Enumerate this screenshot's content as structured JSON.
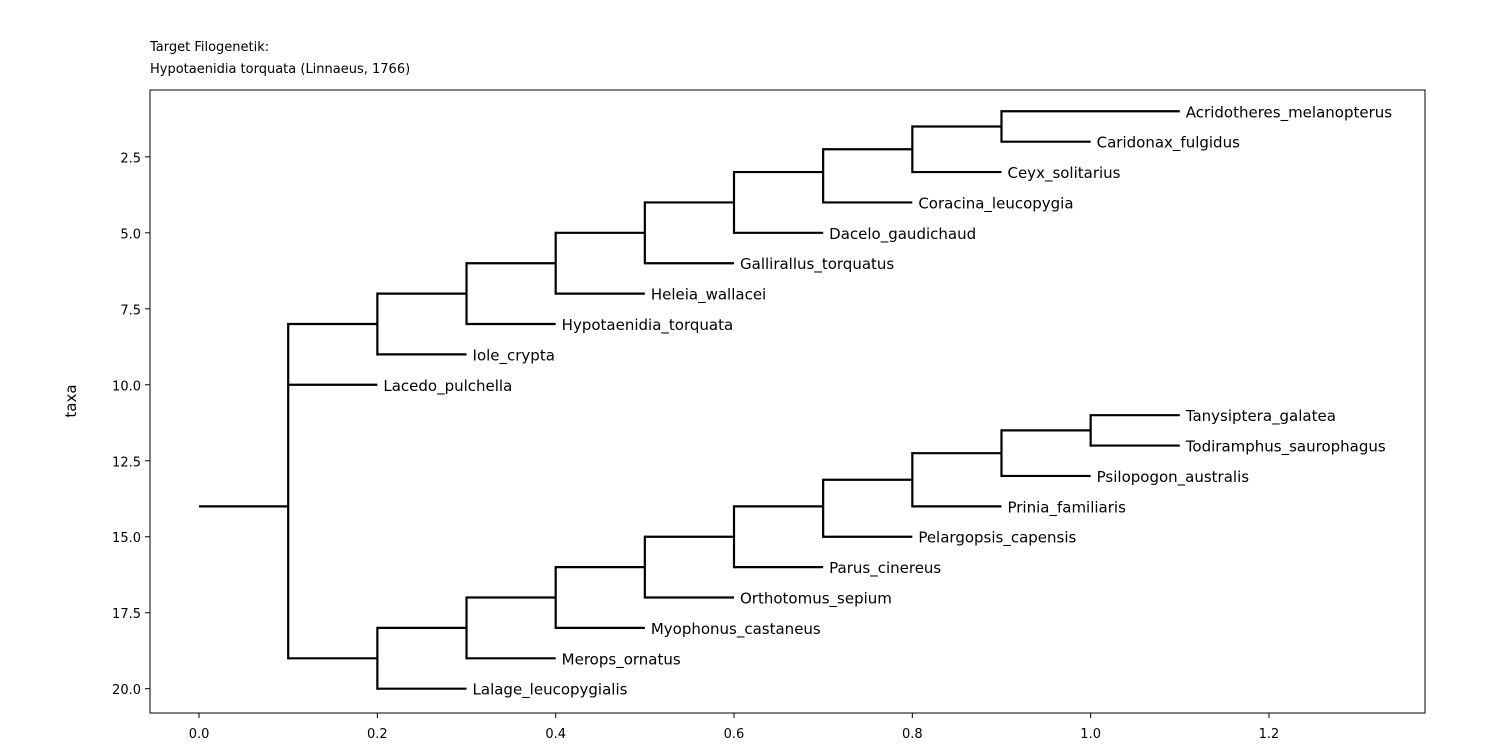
{
  "chart_data": {
    "type": "phylogenetic-tree",
    "title_lines": [
      "Target Filogenetik:",
      "Hypotaenidia torquata (Linnaeus, 1766)"
    ],
    "xlabel": "",
    "ylabel": "taxa",
    "xlim": [
      -0.055,
      1.375
    ],
    "ylim": [
      20.8,
      0.3
    ],
    "y_inverted": true,
    "x_ticks": [
      0.0,
      0.2,
      0.4,
      0.6,
      0.8,
      1.0,
      1.2
    ],
    "x_tick_labels": [
      "0.0",
      "0.2",
      "0.4",
      "0.6",
      "0.8",
      "1.0",
      "1.2"
    ],
    "y_ticks": [
      2.5,
      5.0,
      7.5,
      10.0,
      12.5,
      15.0,
      17.5,
      20.0
    ],
    "y_tick_labels": [
      "2.5",
      "5.0",
      "7.5",
      "10.0",
      "12.5",
      "15.0",
      "17.5",
      "20.0"
    ],
    "grid": false,
    "highlight_color": "#ff0000",
    "line_color": "#000000",
    "root": {
      "x0": 0.0,
      "x1": 0.1,
      "y": 14.0
    },
    "nodes": [
      {
        "x": 0.1,
        "y_min": 8.0,
        "y_max": 19.0
      },
      {
        "x": 0.2,
        "y_min": 7.0,
        "y_max": 9.0
      },
      {
        "x": 0.3,
        "y_min": 6.0,
        "y_max": 8.0
      },
      {
        "x": 0.4,
        "y_min": 5.0,
        "y_max": 7.0
      },
      {
        "x": 0.5,
        "y_min": 4.0,
        "y_max": 6.0
      },
      {
        "x": 0.6,
        "y_min": 3.0,
        "y_max": 5.0
      },
      {
        "x": 0.7,
        "y_min": 2.25,
        "y_max": 4.0
      },
      {
        "x": 0.8,
        "y_min": 1.5,
        "y_max": 3.0
      },
      {
        "x": 0.9,
        "y_min": 1.0,
        "y_max": 2.0
      },
      {
        "x": 0.2,
        "y_min": 18.0,
        "y_max": 20.0
      },
      {
        "x": 0.3,
        "y_min": 17.0,
        "y_max": 19.0
      },
      {
        "x": 0.4,
        "y_min": 16.0,
        "y_max": 18.0
      },
      {
        "x": 0.5,
        "y_min": 15.0,
        "y_max": 17.0
      },
      {
        "x": 0.6,
        "y_min": 14.0,
        "y_max": 16.0
      },
      {
        "x": 0.7,
        "y_min": 13.125,
        "y_max": 15.0
      },
      {
        "x": 0.8,
        "y_min": 12.25,
        "y_max": 14.0
      },
      {
        "x": 0.9,
        "y_min": 11.5,
        "y_max": 13.0
      },
      {
        "x": 1.0,
        "y_min": 11.0,
        "y_max": 12.0
      }
    ],
    "branches": [
      {
        "x0": 0.1,
        "x1": 0.2,
        "y": 8.0
      },
      {
        "x0": 0.1,
        "x1": 0.2,
        "y": 19.0
      },
      {
        "x0": 0.2,
        "x1": 0.3,
        "y": 7.0
      },
      {
        "x0": 0.3,
        "x1": 0.4,
        "y": 6.0
      },
      {
        "x0": 0.4,
        "x1": 0.5,
        "y": 5.0
      },
      {
        "x0": 0.5,
        "x1": 0.6,
        "y": 4.0
      },
      {
        "x0": 0.6,
        "x1": 0.7,
        "y": 3.0
      },
      {
        "x0": 0.7,
        "x1": 0.8,
        "y": 2.25
      },
      {
        "x0": 0.8,
        "x1": 0.9,
        "y": 1.5
      },
      {
        "x0": 0.2,
        "x1": 0.3,
        "y": 18.0
      },
      {
        "x0": 0.3,
        "x1": 0.4,
        "y": 17.0
      },
      {
        "x0": 0.4,
        "x1": 0.5,
        "y": 16.0
      },
      {
        "x0": 0.5,
        "x1": 0.6,
        "y": 15.0
      },
      {
        "x0": 0.6,
        "x1": 0.7,
        "y": 14.0
      },
      {
        "x0": 0.7,
        "x1": 0.8,
        "y": 13.125
      },
      {
        "x0": 0.8,
        "x1": 0.9,
        "y": 12.25
      },
      {
        "x0": 0.9,
        "x1": 1.0,
        "y": 11.5
      }
    ],
    "leaves": [
      {
        "name": "Acridotheres_melanopterus",
        "x0": 0.9,
        "x1": 1.1,
        "y": 1.0,
        "highlight": false
      },
      {
        "name": "Caridonax_fulgidus",
        "x0": 0.9,
        "x1": 1.0,
        "y": 2.0,
        "highlight": false
      },
      {
        "name": "Ceyx_solitarius",
        "x0": 0.8,
        "x1": 0.9,
        "y": 3.0,
        "highlight": false
      },
      {
        "name": "Coracina_leucopygia",
        "x0": 0.7,
        "x1": 0.8,
        "y": 4.0,
        "highlight": false
      },
      {
        "name": "Dacelo_gaudichaud",
        "x0": 0.6,
        "x1": 0.7,
        "y": 5.0,
        "highlight": false
      },
      {
        "name": "Gallirallus_torquatus",
        "x0": 0.5,
        "x1": 0.6,
        "y": 6.0,
        "highlight": false
      },
      {
        "name": "Heleia_wallacei",
        "x0": 0.4,
        "x1": 0.5,
        "y": 7.0,
        "highlight": false
      },
      {
        "name": "Hypotaenidia_torquata",
        "x0": 0.3,
        "x1": 0.4,
        "y": 8.0,
        "highlight": true
      },
      {
        "name": "Iole_crypta",
        "x0": 0.2,
        "x1": 0.3,
        "y": 9.0,
        "highlight": false
      },
      {
        "name": "Lacedo_pulchella",
        "x0": 0.1,
        "x1": 0.2,
        "y": 10.0,
        "highlight": false
      },
      {
        "name": "Tanysiptera_galatea",
        "x0": 1.0,
        "x1": 1.1,
        "y": 11.0,
        "highlight": false
      },
      {
        "name": "Todiramphus_saurophagus",
        "x0": 1.0,
        "x1": 1.1,
        "y": 12.0,
        "highlight": false
      },
      {
        "name": "Psilopogon_australis",
        "x0": 0.9,
        "x1": 1.0,
        "y": 13.0,
        "highlight": false
      },
      {
        "name": "Prinia_familiaris",
        "x0": 0.8,
        "x1": 0.9,
        "y": 14.0,
        "highlight": false
      },
      {
        "name": "Pelargopsis_capensis",
        "x0": 0.7,
        "x1": 0.8,
        "y": 15.0,
        "highlight": false
      },
      {
        "name": "Parus_cinereus",
        "x0": 0.6,
        "x1": 0.7,
        "y": 16.0,
        "highlight": false
      },
      {
        "name": "Orthotomus_sepium",
        "x0": 0.5,
        "x1": 0.6,
        "y": 17.0,
        "highlight": false
      },
      {
        "name": "Myophonus_castaneus",
        "x0": 0.4,
        "x1": 0.5,
        "y": 18.0,
        "highlight": false
      },
      {
        "name": "Merops_ornatus",
        "x0": 0.3,
        "x1": 0.4,
        "y": 19.0,
        "highlight": false
      },
      {
        "name": "Lalage_leucopygialis",
        "x0": 0.2,
        "x1": 0.3,
        "y": 20.0,
        "highlight": false
      }
    ]
  }
}
